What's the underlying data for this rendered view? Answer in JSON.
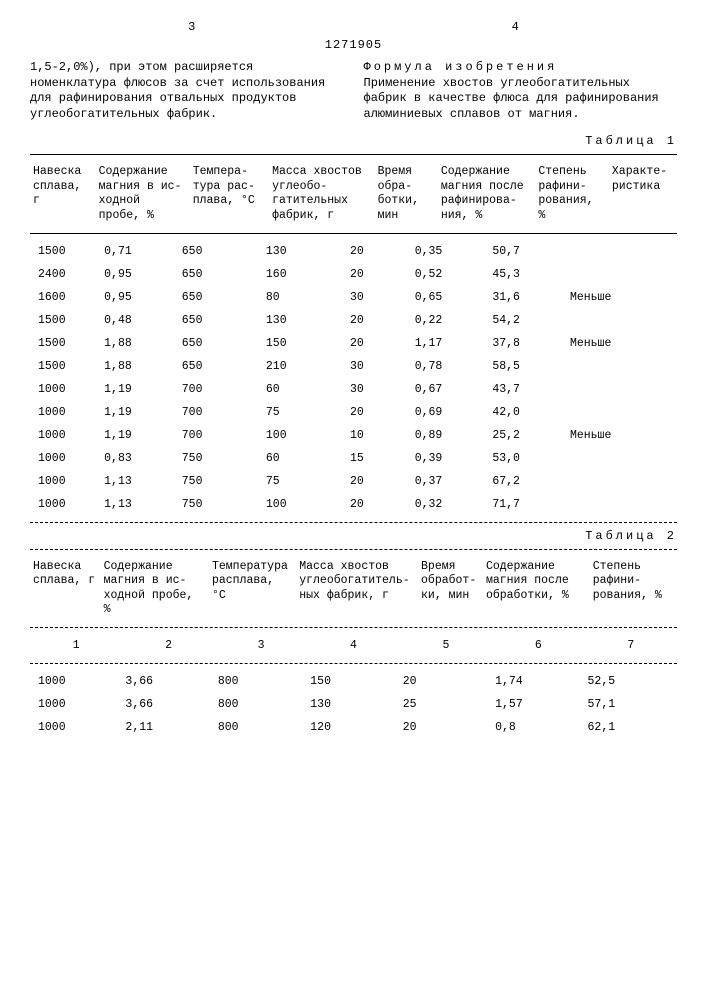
{
  "header": {
    "left_num": "3",
    "right_num": "4",
    "doc_num": "1271905"
  },
  "left_para": "1,5-2,0%), при этом расширяется номенклатура флюсов за счет использования для рафинирования отвальных продуктов углеобогатительных фабрик.",
  "right_title": "Формула изобретения",
  "right_para": "Применение хвостов углеобогатительных фабрик в качестве флюса для рафинирования алюминиевых сплавов от магния.",
  "table1": {
    "label": "Таблица 1",
    "headers": [
      "Навеска сплава, г",
      "Содержа­ние маг­ния в ис­ходной пробе, %",
      "Темпера­тура рас­пла­ва, °С",
      "Масса хвостов углеобо­гатитель­ных фаб­рик, г",
      "Время обра­ботки, мин",
      "Содержа­ние маг­ния пос­ле рафи­нирова­ния, %",
      "Степень рафини­рова­ния, %",
      "Характе­ристика"
    ],
    "rows": [
      [
        "1500",
        "0,71",
        "650",
        "130",
        "20",
        "0,35",
        "50,7",
        ""
      ],
      [
        "2400",
        "0,95",
        "650",
        "160",
        "20",
        "0,52",
        "45,3",
        ""
      ],
      [
        "1600",
        "0,95",
        "650",
        "80",
        "30",
        "0,65",
        "31,6",
        "Меньше"
      ],
      [
        "1500",
        "0,48",
        "650",
        "130",
        "20",
        "0,22",
        "54,2",
        ""
      ],
      [
        "1500",
        "1,88",
        "650",
        "150",
        "20",
        "1,17",
        "37,8",
        "Меньше"
      ],
      [
        "1500",
        "1,88",
        "650",
        "210",
        "30",
        "0,78",
        "58,5",
        ""
      ],
      [
        "1000",
        "1,19",
        "700",
        "60",
        "30",
        "0,67",
        "43,7",
        ""
      ],
      [
        "1000",
        "1,19",
        "700",
        "75",
        "20",
        "0,69",
        "42,0",
        ""
      ],
      [
        "1000",
        "1,19",
        "700",
        "100",
        "10",
        "0,89",
        "25,2",
        "Меньше"
      ],
      [
        "1000",
        "0,83",
        "750",
        "60",
        "15",
        "0,39",
        "53,0",
        ""
      ],
      [
        "1000",
        "1,13",
        "750",
        "75",
        "20",
        "0,37",
        "67,2",
        ""
      ],
      [
        "1000",
        "1,13",
        "750",
        "100",
        "20",
        "0,32",
        "71,7",
        ""
      ]
    ]
  },
  "table2": {
    "label": "Таблица 2",
    "headers": [
      "Навеска сплава, г",
      "Содержа­ние маг­ния в ис­ходной пробе, %",
      "Темпера­тура рас­пла­ва, °С",
      "Масса хвостов углеобо­гатитель­ных фаб­рик, г",
      "Время обра­бот­ки, мин",
      "Содержа­ние маг­ния пос­ле обра­ботки, %",
      "Степень рафини­рования, %"
    ],
    "subhead": [
      "1",
      "2",
      "3",
      "4",
      "5",
      "6",
      "7"
    ],
    "rows": [
      [
        "1000",
        "3,66",
        "800",
        "150",
        "20",
        "1,74",
        "52,5"
      ],
      [
        "1000",
        "3,66",
        "800",
        "130",
        "25",
        "1,57",
        "57,1"
      ],
      [
        "1000",
        "2,11",
        "800",
        "120",
        "20",
        "0,8",
        "62,1"
      ]
    ]
  }
}
